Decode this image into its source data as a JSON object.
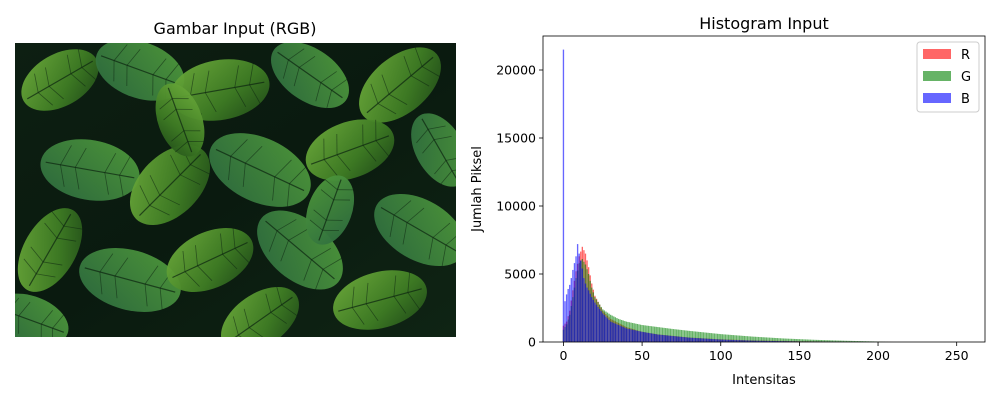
{
  "left_panel": {
    "title": "Gambar Input (RGB)",
    "image_subject": "leaves-photo"
  },
  "chart_data": {
    "type": "bar",
    "title": "Histogram Input",
    "xlabel": "Intensitas",
    "ylabel": "Jumlah Piksel",
    "xlim": [
      -13,
      268
    ],
    "ylim": [
      0,
      22500
    ],
    "xticks": [
      0,
      50,
      100,
      150,
      200,
      250
    ],
    "yticks": [
      0,
      5000,
      10000,
      15000,
      20000
    ],
    "grid": false,
    "legend_position": "top-right",
    "series": [
      {
        "name": "R",
        "color": "#ff0000",
        "alpha": 0.6,
        "anchors": [
          [
            0,
            1200
          ],
          [
            2,
            1500
          ],
          [
            4,
            2300
          ],
          [
            6,
            3800
          ],
          [
            8,
            5200
          ],
          [
            10,
            6300
          ],
          [
            12,
            7000
          ],
          [
            14,
            6500
          ],
          [
            16,
            5500
          ],
          [
            18,
            4300
          ],
          [
            20,
            3400
          ],
          [
            25,
            2300
          ],
          [
            30,
            1700
          ],
          [
            40,
            1100
          ],
          [
            50,
            750
          ],
          [
            60,
            560
          ],
          [
            80,
            330
          ],
          [
            100,
            200
          ],
          [
            120,
            120
          ],
          [
            150,
            60
          ],
          [
            180,
            25
          ],
          [
            200,
            10
          ],
          [
            210,
            3
          ],
          [
            215,
            0
          ],
          [
            255,
            0
          ]
        ]
      },
      {
        "name": "G",
        "color": "#008000",
        "alpha": 0.6,
        "anchors": [
          [
            0,
            900
          ],
          [
            2,
            1300
          ],
          [
            4,
            2000
          ],
          [
            6,
            3300
          ],
          [
            8,
            4700
          ],
          [
            10,
            5800
          ],
          [
            12,
            6100
          ],
          [
            14,
            5700
          ],
          [
            16,
            5000
          ],
          [
            18,
            4000
          ],
          [
            20,
            3300
          ],
          [
            25,
            2400
          ],
          [
            30,
            2000
          ],
          [
            35,
            1700
          ],
          [
            40,
            1500
          ],
          [
            50,
            1250
          ],
          [
            60,
            1100
          ],
          [
            70,
            950
          ],
          [
            80,
            820
          ],
          [
            100,
            580
          ],
          [
            120,
            400
          ],
          [
            140,
            260
          ],
          [
            160,
            160
          ],
          [
            180,
            90
          ],
          [
            200,
            35
          ],
          [
            205,
            15
          ],
          [
            210,
            0
          ],
          [
            255,
            0
          ]
        ]
      },
      {
        "name": "B",
        "color": "#0000ff",
        "alpha": 0.6,
        "anchors": [
          [
            0,
            21500
          ],
          [
            1,
            3000
          ],
          [
            2,
            3500
          ],
          [
            3,
            3900
          ],
          [
            4,
            4200
          ],
          [
            5,
            4700
          ],
          [
            6,
            5300
          ],
          [
            7,
            5800
          ],
          [
            8,
            6300
          ],
          [
            9,
            7200
          ],
          [
            10,
            6500
          ],
          [
            11,
            6000
          ],
          [
            12,
            5400
          ],
          [
            13,
            4700
          ],
          [
            14,
            4300
          ],
          [
            15,
            4000
          ],
          [
            16,
            3800
          ],
          [
            18,
            3300
          ],
          [
            20,
            2900
          ],
          [
            25,
            2100
          ],
          [
            30,
            1500
          ],
          [
            40,
            1000
          ],
          [
            50,
            750
          ],
          [
            60,
            550
          ],
          [
            80,
            320
          ],
          [
            100,
            180
          ],
          [
            120,
            100
          ],
          [
            150,
            40
          ],
          [
            180,
            12
          ],
          [
            200,
            4
          ],
          [
            210,
            0
          ],
          [
            255,
            0
          ]
        ]
      }
    ]
  }
}
